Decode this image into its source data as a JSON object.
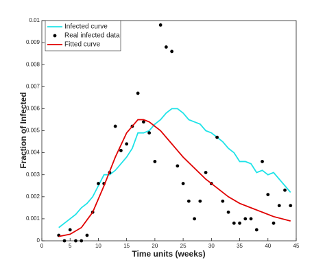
{
  "chart_data": {
    "type": "line",
    "xlabel": "Time units (weeks)",
    "ylabel": "Fraction of Infected",
    "xlim": [
      0,
      45
    ],
    "xticks": [
      0,
      5,
      10,
      15,
      20,
      25,
      30,
      35,
      40,
      45
    ],
    "ylim": [
      0,
      0.01
    ],
    "yticks": [
      0,
      0.001,
      0.002,
      0.003,
      0.004,
      0.005,
      0.006,
      0.007,
      0.008,
      0.009,
      0.01
    ],
    "legend": "upper left",
    "series": [
      {
        "name": "Infected curve",
        "style": "line",
        "color": "#1ee3e8",
        "x": [
          3,
          4,
          5,
          6,
          7,
          8,
          9,
          10,
          11,
          12,
          13,
          14,
          15,
          16,
          17,
          18,
          19,
          20,
          21,
          22,
          23,
          24,
          25,
          26,
          27,
          28,
          29,
          30,
          31,
          32,
          33,
          34,
          35,
          36,
          37,
          38,
          39,
          40,
          41,
          42,
          43,
          44
        ],
        "values": [
          0.0006,
          0.0008,
          0.001,
          0.0012,
          0.0015,
          0.0017,
          0.002,
          0.0025,
          0.003,
          0.003,
          0.0032,
          0.0035,
          0.0038,
          0.0042,
          0.0049,
          0.0049,
          0.005,
          0.0053,
          0.0055,
          0.0058,
          0.006,
          0.006,
          0.0058,
          0.0055,
          0.0054,
          0.0053,
          0.005,
          0.0049,
          0.0047,
          0.0045,
          0.0042,
          0.004,
          0.0036,
          0.0036,
          0.0035,
          0.0031,
          0.0032,
          0.003,
          0.0031,
          0.0028,
          0.0025,
          0.0022
        ]
      },
      {
        "name": "Real infected data",
        "style": "marker",
        "color": "#000000",
        "x": [
          3,
          4,
          5,
          6,
          7,
          8,
          9,
          10,
          11,
          12,
          13,
          14,
          15,
          16,
          17,
          18,
          19,
          20,
          21,
          22,
          23,
          24,
          25,
          26,
          27,
          28,
          29,
          30,
          31,
          32,
          33,
          34,
          35,
          36,
          37,
          38,
          39,
          40,
          41,
          42,
          43,
          44
        ],
        "values": [
          0.00025,
          0,
          0.0005,
          0,
          0,
          0.00025,
          0.0013,
          0.0026,
          0.0026,
          0.0031,
          0.0052,
          0.0041,
          0.0044,
          0.0052,
          0.0067,
          0.0054,
          0.0049,
          0.0036,
          0.0098,
          0.0088,
          0.0086,
          0.0034,
          0.0026,
          0.0018,
          0.001,
          0.0018,
          0.0031,
          0.0026,
          0.0047,
          0.0018,
          0.0013,
          0.0008,
          0.0008,
          0.001,
          0.001,
          0.0005,
          0.0036,
          0.0021,
          0.0008,
          0.0016,
          0.0023,
          0.0016
        ]
      },
      {
        "name": "Fitted curve",
        "style": "line",
        "color": "#e00000",
        "x": [
          3,
          5,
          7,
          9,
          11,
          13,
          15,
          17,
          18,
          19,
          21,
          23,
          25,
          27,
          29,
          31,
          33,
          35,
          37,
          39,
          41,
          44
        ],
        "values": [
          0.0002,
          0.0003,
          0.0006,
          0.0013,
          0.0025,
          0.0038,
          0.0049,
          0.0055,
          0.0055,
          0.0054,
          0.005,
          0.0044,
          0.0038,
          0.0033,
          0.0028,
          0.0024,
          0.002,
          0.0017,
          0.0015,
          0.0013,
          0.0011,
          0.0009
        ]
      }
    ]
  }
}
